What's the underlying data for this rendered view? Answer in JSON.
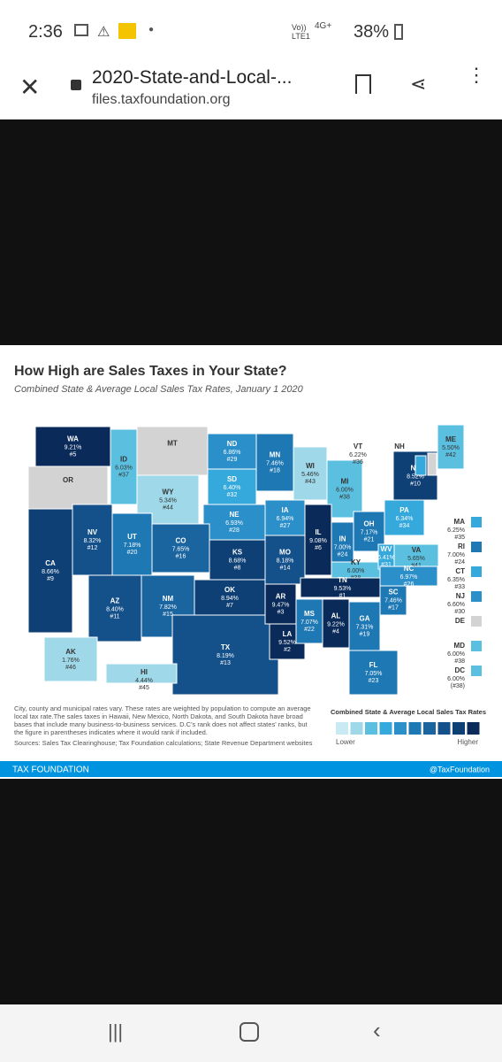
{
  "status_bar": {
    "time": "2:36",
    "network": "Vo)) LTE1",
    "signal": "4G+",
    "battery": "38%"
  },
  "browser": {
    "title": "2020-State-and-Local-...",
    "url": "files.taxfoundation.org"
  },
  "map": {
    "title": "How High are Sales Taxes in Your State?",
    "subtitle": "Combined State & Average Local Sales Tax Rates, January 1 2020",
    "states": [
      {
        "abbr": "WA",
        "rate": "9.21%",
        "rank": "#5",
        "color": "#0a2b5a"
      },
      {
        "abbr": "OR",
        "color": "#d3d3d3"
      },
      {
        "abbr": "CA",
        "rate": "8.66%",
        "rank": "#9",
        "color": "#0e3f75"
      },
      {
        "abbr": "NV",
        "rate": "8.32%",
        "rank": "#12",
        "color": "#14508a"
      },
      {
        "abbr": "ID",
        "rate": "6.03%",
        "rank": "#37",
        "color": "#5bc0e0"
      },
      {
        "abbr": "MT",
        "color": "#d3d3d3"
      },
      {
        "abbr": "WY",
        "rate": "5.34%",
        "rank": "#44",
        "color": "#9fd8e8"
      },
      {
        "abbr": "ND",
        "rate": "6.86%",
        "rank": "#29",
        "color": "#2b8fca"
      },
      {
        "abbr": "SD",
        "rate": "6.40%",
        "rank": "#32",
        "color": "#35a9dc"
      },
      {
        "abbr": "NE",
        "rate": "6.93%",
        "rank": "#28",
        "color": "#2b8fca"
      },
      {
        "abbr": "MN",
        "rate": "7.46%",
        "rank": "#18",
        "color": "#1e78b4"
      },
      {
        "abbr": "WI",
        "rate": "5.46%",
        "rank": "#43",
        "color": "#9fd8e8"
      },
      {
        "abbr": "MI",
        "rate": "6.00%",
        "rank": "#38",
        "color": "#5bc0e0"
      },
      {
        "abbr": "UT",
        "rate": "7.18%",
        "rank": "#20",
        "color": "#1e78b4"
      },
      {
        "abbr": "CO",
        "rate": "7.65%",
        "rank": "#16",
        "color": "#1a64a0"
      },
      {
        "abbr": "KS",
        "rate": "8.68%",
        "rank": "#8",
        "color": "#0e3f75"
      },
      {
        "abbr": "IA",
        "rate": "6.94%",
        "rank": "#27",
        "color": "#2b8fca"
      },
      {
        "abbr": "IL",
        "rate": "9.08%",
        "rank": "#6",
        "color": "#0a2b5a"
      },
      {
        "abbr": "IN",
        "rate": "7.00%",
        "rank": "#24",
        "color": "#1e78b4"
      },
      {
        "abbr": "OH",
        "rate": "7.17%",
        "rank": "#21",
        "color": "#1e78b4"
      },
      {
        "abbr": "PA",
        "rate": "6.34%",
        "rank": "#34",
        "color": "#35a9dc"
      },
      {
        "abbr": "NY",
        "rate": "8.52%",
        "rank": "#10",
        "color": "#0e3f75"
      },
      {
        "abbr": "VT",
        "rate": "6.22%",
        "rank": "#36",
        "color": "#35a9dc"
      },
      {
        "abbr": "NH",
        "color": "#d3d3d3"
      },
      {
        "abbr": "ME",
        "rate": "5.50%",
        "rank": "#42",
        "color": "#5bc0e0"
      },
      {
        "abbr": "MO",
        "rate": "8.18%",
        "rank": "#14",
        "color": "#14508a"
      },
      {
        "abbr": "KY",
        "rate": "6.00%",
        "rank": "#38",
        "color": "#5bc0e0"
      },
      {
        "abbr": "WV",
        "rate": "6.41%",
        "rank": "#31",
        "color": "#35a9dc"
      },
      {
        "abbr": "VA",
        "rate": "5.65%",
        "rank": "#41",
        "color": "#5bc0e0"
      },
      {
        "abbr": "AZ",
        "rate": "8.40%",
        "rank": "#11",
        "color": "#14508a"
      },
      {
        "abbr": "NM",
        "rate": "7.82%",
        "rank": "#15",
        "color": "#1a64a0"
      },
      {
        "abbr": "OK",
        "rate": "8.94%",
        "rank": "#7",
        "color": "#0e3f75"
      },
      {
        "abbr": "TX",
        "rate": "8.19%",
        "rank": "#13",
        "color": "#14508a"
      },
      {
        "abbr": "AR",
        "rate": "9.47%",
        "rank": "#3",
        "color": "#0a2b5a"
      },
      {
        "abbr": "LA",
        "rate": "9.52%",
        "rank": "#2",
        "color": "#0a2b5a"
      },
      {
        "abbr": "MS",
        "rate": "7.07%",
        "rank": "#22",
        "color": "#1e78b4"
      },
      {
        "abbr": "AL",
        "rate": "9.22%",
        "rank": "#4",
        "color": "#0a2b5a"
      },
      {
        "abbr": "TN",
        "rate": "9.53%",
        "rank": "#1",
        "color": "#0a2b5a"
      },
      {
        "abbr": "GA",
        "rate": "7.31%",
        "rank": "#19",
        "color": "#1e78b4"
      },
      {
        "abbr": "SC",
        "rate": "7.46%",
        "rank": "#17",
        "color": "#1e78b4"
      },
      {
        "abbr": "NC",
        "rate": "6.97%",
        "rank": "#26",
        "color": "#2b8fca"
      },
      {
        "abbr": "FL",
        "rate": "7.05%",
        "rank": "#23",
        "color": "#1e78b4"
      },
      {
        "abbr": "AK",
        "rate": "1.76%",
        "rank": "#46",
        "color": "#9fd8e8"
      },
      {
        "abbr": "HI",
        "rate": "4.44%",
        "rank": "#45",
        "color": "#9fd8e8"
      },
      {
        "abbr": "MA",
        "rate": "6.25%",
        "rank": "#35",
        "color": "#35a9dc"
      },
      {
        "abbr": "RI",
        "rate": "7.00%",
        "rank": "#24",
        "color": "#1e78b4"
      },
      {
        "abbr": "CT",
        "rate": "6.35%",
        "rank": "#33",
        "color": "#35a9dc"
      },
      {
        "abbr": "NJ",
        "rate": "6.60%",
        "rank": "#30",
        "color": "#2b8fca"
      },
      {
        "abbr": "DE",
        "color": "#d3d3d3"
      },
      {
        "abbr": "MD",
        "rate": "6.00%",
        "rank": "#38",
        "color": "#5bc0e0"
      },
      {
        "abbr": "DC",
        "rate": "6.00%",
        "rank": "(#38)",
        "color": "#5bc0e0"
      }
    ],
    "footnote": "City, county and municipal rates vary. These rates are weighted by population to compute an average local tax rate.The sales taxes in Hawaii, New Mexico, North Dakota, and South Dakota have broad bases that include many business-to-business services. D.C's rank does not affect states' ranks, but the figure in parentheses indicates where it would rank if included.",
    "sources": "Sources: Sales Tax Clearinghouse; Tax Foundation calculations; State Revenue Department websites",
    "legend": {
      "title": "Combined State & Average Local Sales Tax Rates",
      "low": "Lower",
      "high": "Higher",
      "colors": [
        "#c9eaf3",
        "#9fd8e8",
        "#5bc0e0",
        "#35a9dc",
        "#2b8fca",
        "#1e78b4",
        "#1a64a0",
        "#14508a",
        "#0e3f75",
        "#0a2b5a"
      ]
    },
    "footer": {
      "brand": "TAX FOUNDATION",
      "handle": "@TaxFoundation"
    }
  }
}
